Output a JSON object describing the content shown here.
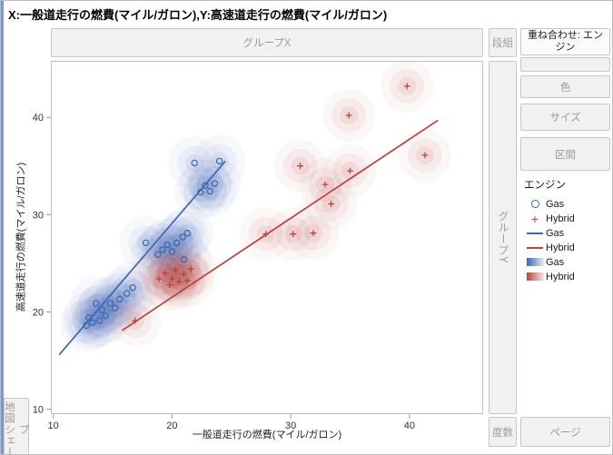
{
  "window": {
    "title": "X:一般道走行の燃費(マイル/ガロン),Y:高速道走行の燃費(マイル/ガロン)"
  },
  "zones": {
    "group_x": "グループX",
    "lattice": "段組",
    "overlay": "重ね合わせ: エンジン",
    "color": "色",
    "size": "サイズ",
    "interval": "区間",
    "group_y": "グループY",
    "frequency": "度数",
    "page": "ページ",
    "map_shape": "地図シェープ"
  },
  "legend": {
    "title": "エンジン",
    "items": [
      {
        "type": "marker-circle",
        "label": "Gas",
        "color": "#3a67b1"
      },
      {
        "type": "marker-plus",
        "label": "Hybrid",
        "color": "#b8433c"
      },
      {
        "type": "line",
        "label": "Gas",
        "color": "#3a67b1"
      },
      {
        "type": "line",
        "label": "Hybrid",
        "color": "#b8433c"
      },
      {
        "type": "gradient",
        "label": "Gas",
        "color": "#3a67b1"
      },
      {
        "type": "gradient",
        "label": "Hybrid",
        "color": "#b8433c"
      }
    ]
  },
  "chart_data": {
    "type": "scatter",
    "title": "",
    "xlabel": "一般道走行の燃費(マイル/ガロン)",
    "ylabel": "高速道走行の燃費(マイル/ガロン)",
    "xlim": [
      9.8,
      46.2
    ],
    "ylim": [
      9.5,
      45.8
    ],
    "xticks": [
      10,
      20,
      30,
      40
    ],
    "yticks": [
      10,
      20,
      30,
      40
    ],
    "grid": false,
    "legend_position": "right-panel",
    "overlay_variable": "エンジン",
    "elements": [
      "points",
      "line-of-fit",
      "nonparametric-density"
    ],
    "series": [
      {
        "name": "Gas",
        "marker": "circle",
        "color": "#3a67b1",
        "points": [
          [
            12.8,
            18.6
          ],
          [
            13.0,
            19.4
          ],
          [
            13.3,
            18.9
          ],
          [
            13.6,
            20.9
          ],
          [
            13.9,
            19.1
          ],
          [
            14.1,
            20.2
          ],
          [
            14.4,
            19.6
          ],
          [
            14.8,
            20.9
          ],
          [
            15.2,
            20.4
          ],
          [
            15.6,
            21.3
          ],
          [
            16.2,
            21.9
          ],
          [
            16.7,
            22.5
          ],
          [
            17.8,
            27.1
          ],
          [
            18.8,
            25.9
          ],
          [
            19.2,
            26.4
          ],
          [
            19.6,
            26.9
          ],
          [
            20.0,
            26.2
          ],
          [
            20.4,
            27.1
          ],
          [
            20.9,
            27.7
          ],
          [
            21.3,
            28.1
          ],
          [
            21.0,
            25.4
          ],
          [
            21.9,
            35.3
          ],
          [
            22.4,
            32.3
          ],
          [
            22.8,
            33.0
          ],
          [
            23.2,
            32.4
          ],
          [
            23.6,
            33.2
          ],
          [
            24.0,
            35.5
          ]
        ],
        "trend": [
          [
            10.5,
            15.6
          ],
          [
            24.5,
            35.5
          ]
        ]
      },
      {
        "name": "Hybrid",
        "marker": "plus",
        "color": "#b8433c",
        "points": [
          [
            16.9,
            19.1
          ],
          [
            18.9,
            23.4
          ],
          [
            19.4,
            24.0
          ],
          [
            19.8,
            22.8
          ],
          [
            20.0,
            23.4
          ],
          [
            20.3,
            24.3
          ],
          [
            20.6,
            23.1
          ],
          [
            21.0,
            23.9
          ],
          [
            21.3,
            23.2
          ],
          [
            21.6,
            24.4
          ],
          [
            27.9,
            28.0
          ],
          [
            30.2,
            28.0
          ],
          [
            31.9,
            28.1
          ],
          [
            30.8,
            35.0
          ],
          [
            32.9,
            33.1
          ],
          [
            33.4,
            31.1
          ],
          [
            35.0,
            34.5
          ],
          [
            34.9,
            40.2
          ],
          [
            39.8,
            43.2
          ],
          [
            41.3,
            36.1
          ]
        ],
        "trend": [
          [
            15.8,
            18.1
          ],
          [
            42.4,
            39.7
          ]
        ]
      }
    ]
  }
}
